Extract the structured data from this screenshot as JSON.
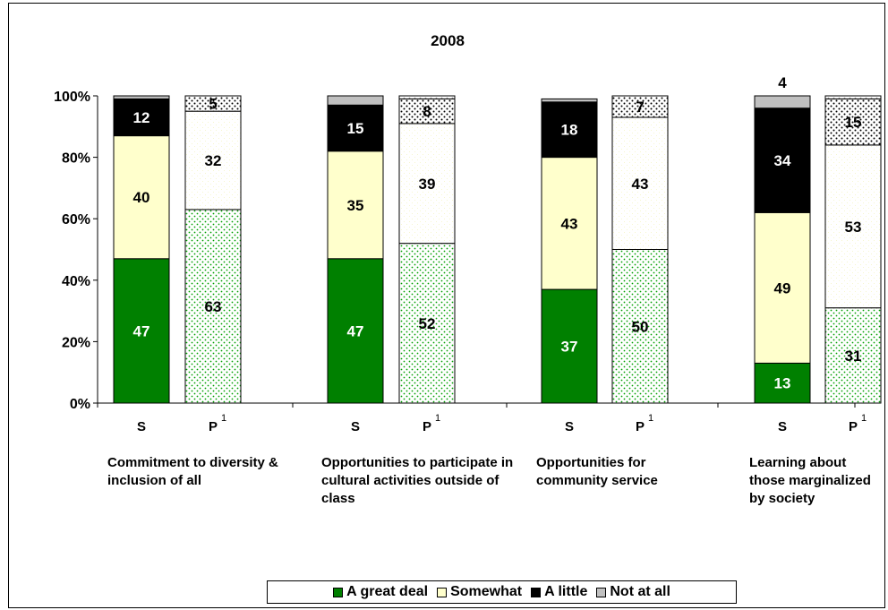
{
  "chart_data": {
    "type": "bar",
    "stacked": true,
    "title": "2008",
    "ylim": [
      0,
      100
    ],
    "yticks": [
      "0%",
      "20%",
      "40%",
      "60%",
      "80%",
      "100%"
    ],
    "bar_labels": [
      "S",
      "P",
      "S",
      "P",
      "S",
      "P",
      "S",
      "P"
    ],
    "bar_superscripts": [
      "",
      "1",
      "",
      "1",
      "",
      "1",
      "",
      "1"
    ],
    "groups": [
      "Commitment to diversity & inclusion of all",
      "Opportunities to participate in cultural activities outside of class",
      "Opportunities for community service",
      "Learning about those marginalized by society"
    ],
    "series": [
      {
        "name": "A great deal",
        "color": "#008000",
        "values": [
          47,
          63,
          47,
          52,
          37,
          50,
          13,
          31
        ]
      },
      {
        "name": "Somewhat",
        "color": "#ffffcc",
        "values": [
          40,
          32,
          35,
          39,
          43,
          43,
          49,
          53
        ]
      },
      {
        "name": "A little",
        "color": "#000000",
        "values": [
          12,
          5,
          15,
          8,
          18,
          7,
          34,
          15
        ]
      },
      {
        "name": "Not at all",
        "color": "#c0c0c0",
        "values": [
          1,
          0,
          3,
          1,
          1,
          0,
          4,
          1
        ]
      }
    ],
    "data_labels": [
      [
        "47",
        "63",
        "47",
        "52",
        "37",
        "50",
        "13",
        "31"
      ],
      [
        "40",
        "32",
        "35",
        "39",
        "43",
        "43",
        "49",
        "53"
      ],
      [
        "12",
        "5",
        "15",
        "8",
        "18",
        "7",
        "34",
        "15"
      ],
      [
        "",
        "",
        "",
        "",
        "",
        "",
        "4",
        ""
      ]
    ],
    "legend_position": "bottom"
  }
}
